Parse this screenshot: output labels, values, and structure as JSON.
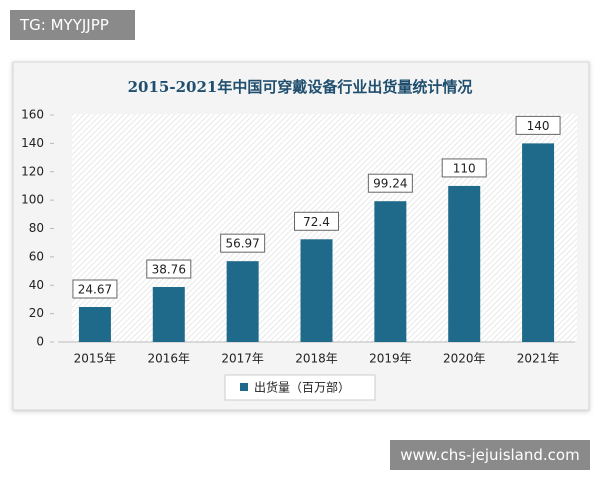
{
  "watermarks": {
    "top": "TG: MYYJJPP",
    "bottom": "www.chs-jejuisland.com"
  },
  "chart_data": {
    "type": "bar",
    "title": "2015-2021年中国可穿戴设备行业出货量统计情况",
    "categories": [
      "2015年",
      "2016年",
      "2017年",
      "2018年",
      "2019年",
      "2020年",
      "2021年"
    ],
    "series": [
      {
        "name": "出货量（百万部）",
        "color": "#1f6a8a",
        "values": [
          24.67,
          38.76,
          56.97,
          72.4,
          99.24,
          110,
          140
        ]
      }
    ],
    "ylim": [
      0,
      160
    ],
    "yticks": [
      0,
      20,
      40,
      60,
      80,
      100,
      120,
      140,
      160
    ],
    "legend": "bottom"
  }
}
